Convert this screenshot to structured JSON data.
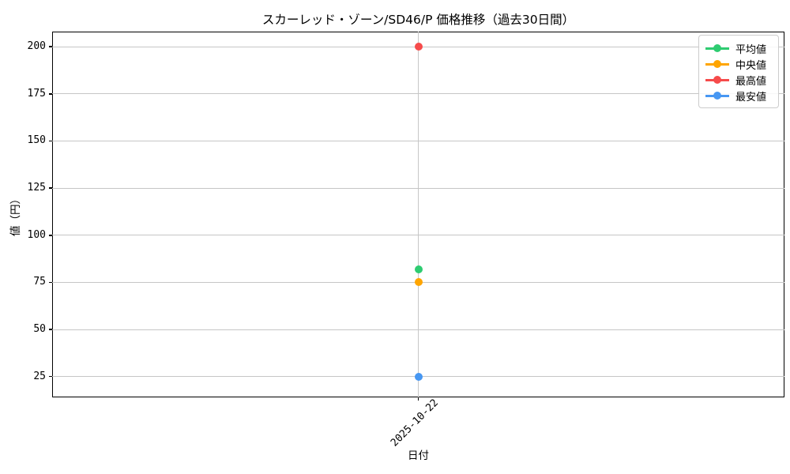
{
  "chart_data": {
    "type": "line",
    "title": "スカーレッド・ゾーン/SD46/P 価格推移（過去30日間）",
    "xlabel": "日付",
    "ylabel": "値（円）",
    "x": [
      "2025-10-22"
    ],
    "series": [
      {
        "name": "平均値",
        "color": "#2ecc71",
        "values": [
          82
        ]
      },
      {
        "name": "中央値",
        "color": "#ffa500",
        "values": [
          75
        ]
      },
      {
        "name": "最高値",
        "color": "#f64b4b",
        "values": [
          200
        ]
      },
      {
        "name": "最安値",
        "color": "#4797f2",
        "values": [
          25
        ]
      }
    ],
    "y_ticks": [
      25,
      50,
      75,
      100,
      125,
      150,
      175,
      200
    ],
    "ylim": [
      14,
      208
    ],
    "grid": true,
    "legend_position": "upper right",
    "marker": "circle",
    "background_color": "#ffffff",
    "gridline_color": "#c6c6c6"
  }
}
